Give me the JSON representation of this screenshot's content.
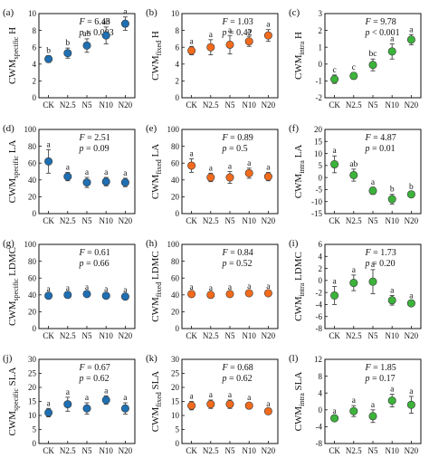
{
  "colors": {
    "blue": "#1f6fb2",
    "orange": "#f26b1d",
    "green": "#3cb33a",
    "axis": "#111111"
  },
  "chart_data": [
    {
      "type": "scatter",
      "panel": "(a)",
      "ylabel_main": "CWM",
      "ylabel_sub": "specific",
      "ylabel_trait": " H",
      "ylim": [
        0,
        10
      ],
      "yticks": [
        0,
        2,
        4,
        6,
        8,
        10
      ],
      "categories": [
        "CK",
        "N2.5",
        "N5",
        "N10",
        "N20"
      ],
      "values": [
        4.6,
        5.3,
        6.2,
        7.4,
        8.8
      ],
      "errors": [
        0.4,
        0.6,
        0.8,
        1.0,
        0.8
      ],
      "letters": [
        "b",
        "b",
        "ab",
        "ab",
        "a"
      ],
      "stat_f": "6.43",
      "stat_p": "0.003",
      "stat_p_op": "=",
      "color": "blue"
    },
    {
      "type": "scatter",
      "panel": "(b)",
      "ylabel_main": "CWM",
      "ylabel_sub": "fixed",
      "ylabel_trait": " H",
      "ylim": [
        0,
        10
      ],
      "yticks": [
        0,
        2,
        4,
        6,
        8,
        10
      ],
      "categories": [
        "CK",
        "N2.5",
        "N5",
        "N10",
        "N20"
      ],
      "values": [
        5.6,
        6.0,
        6.3,
        6.7,
        7.4
      ],
      "errors": [
        0.5,
        0.9,
        1.1,
        0.6,
        0.7
      ],
      "letters": [
        "a",
        "a",
        "a",
        "a",
        "a"
      ],
      "stat_f": "1.03",
      "stat_p": "0.42",
      "stat_p_op": "=",
      "color": "orange"
    },
    {
      "type": "scatter",
      "panel": "(c)",
      "ylabel_main": "CWM",
      "ylabel_sub": "intra",
      "ylabel_trait": " H",
      "ylim": [
        -2,
        3
      ],
      "yticks": [
        -2,
        -1,
        0,
        1,
        2,
        3
      ],
      "categories": [
        "CK",
        "N2.5",
        "N5",
        "N10",
        "N20"
      ],
      "values": [
        -0.9,
        -0.7,
        -0.05,
        0.75,
        1.45
      ],
      "errors": [
        0.25,
        0.2,
        0.35,
        0.45,
        0.3
      ],
      "letters": [
        "c",
        "c",
        "bc",
        "a",
        "a"
      ],
      "stat_f": "9.78",
      "stat_p": "0.001",
      "stat_p_op": "<",
      "color": "green"
    },
    {
      "type": "scatter",
      "panel": "(d)",
      "ylabel_main": "CWM",
      "ylabel_sub": "specific",
      "ylabel_trait": " LA",
      "ylim": [
        0,
        100
      ],
      "yticks": [
        0,
        20,
        40,
        60,
        80,
        100
      ],
      "categories": [
        "CK",
        "N2.5",
        "N5",
        "N10",
        "N20"
      ],
      "values": [
        62,
        44,
        37,
        38,
        37
      ],
      "errors": [
        14,
        5,
        6,
        5,
        5
      ],
      "letters": [
        "a",
        "a",
        "a",
        "a",
        "a"
      ],
      "stat_f": "2.51",
      "stat_p": "0.09",
      "stat_p_op": "=",
      "color": "blue"
    },
    {
      "type": "scatter",
      "panel": "(e)",
      "ylabel_main": "CWM",
      "ylabel_sub": "fixed",
      "ylabel_trait": " LA",
      "ylim": [
        0,
        100
      ],
      "yticks": [
        0,
        20,
        40,
        60,
        80,
        100
      ],
      "categories": [
        "CK",
        "N2.5",
        "N5",
        "N10",
        "N20"
      ],
      "values": [
        57,
        43,
        43,
        48,
        44
      ],
      "errors": [
        8,
        5,
        7,
        6,
        5
      ],
      "letters": [
        "a",
        "a",
        "a",
        "a",
        "a"
      ],
      "stat_f": "0.89",
      "stat_p": "0.5",
      "stat_p_op": "=",
      "color": "orange"
    },
    {
      "type": "scatter",
      "panel": "(f)",
      "ylabel_main": "CWM",
      "ylabel_sub": "intra",
      "ylabel_trait": " LA",
      "ylim": [
        -15,
        20
      ],
      "yticks": [
        -15,
        -10,
        -5,
        0,
        5,
        10,
        15,
        20
      ],
      "categories": [
        "CK",
        "N2.5",
        "N5",
        "N10",
        "N20"
      ],
      "values": [
        5.5,
        1.0,
        -5.5,
        -9.0,
        -7.0
      ],
      "errors": [
        3.5,
        2.5,
        1.5,
        2.0,
        1.0
      ],
      "letters": [
        "a",
        "ab",
        "a",
        "b",
        "b"
      ],
      "stat_f": "4.87",
      "stat_p": "0.01",
      "stat_p_op": "=",
      "color": "green"
    },
    {
      "type": "scatter",
      "panel": "(g)",
      "ylabel_main": "CWM",
      "ylabel_sub": "specific",
      "ylabel_trait": " LDMC",
      "ylim": [
        0,
        100
      ],
      "yticks": [
        0,
        20,
        40,
        60,
        80,
        100
      ],
      "categories": [
        "CK",
        "N2.5",
        "N5",
        "N10",
        "N20"
      ],
      "values": [
        39,
        40,
        41,
        39,
        38
      ],
      "errors": [
        2,
        2,
        2,
        2,
        2
      ],
      "letters": [
        "a",
        "a",
        "a",
        "a",
        "a"
      ],
      "stat_f": "0.61",
      "stat_p": "0.66",
      "stat_p_op": "=",
      "color": "blue"
    },
    {
      "type": "scatter",
      "panel": "(h)",
      "ylabel_main": "CWM",
      "ylabel_sub": "fixed",
      "ylabel_trait": " LDMC",
      "ylim": [
        0,
        100
      ],
      "yticks": [
        0,
        20,
        40,
        60,
        80,
        100
      ],
      "categories": [
        "CK",
        "N2.5",
        "N5",
        "N10",
        "N20"
      ],
      "values": [
        41,
        40,
        41,
        42,
        42
      ],
      "errors": [
        2,
        2,
        2,
        2,
        2
      ],
      "letters": [
        "a",
        "a",
        "a",
        "a",
        "a"
      ],
      "stat_f": "0.84",
      "stat_p": "0.52",
      "stat_p_op": "=",
      "color": "orange"
    },
    {
      "type": "scatter",
      "panel": "(i)",
      "ylabel_main": "CWM",
      "ylabel_sub": "intra",
      "ylabel_trait": " LDMC",
      "ylim": [
        -8,
        6
      ],
      "yticks": [
        -8,
        -6,
        -4,
        -2,
        0,
        2,
        4,
        6
      ],
      "categories": [
        "CK",
        "N2.5",
        "N5",
        "N10",
        "N20"
      ],
      "values": [
        -2.5,
        -0.4,
        -0.2,
        -3.3,
        -3.8
      ],
      "errors": [
        1.5,
        1.3,
        2.0,
        0.8,
        0.4
      ],
      "letters": [
        "a",
        "a",
        "a",
        "a",
        "a"
      ],
      "stat_f": "1.73",
      "stat_p": "0.20",
      "stat_p_op": "=",
      "color": "green"
    },
    {
      "type": "scatter",
      "panel": "(j)",
      "ylabel_main": "CWM",
      "ylabel_sub": "specific",
      "ylabel_trait": " SLA",
      "ylim": [
        0,
        30
      ],
      "yticks": [
        0,
        5,
        10,
        15,
        20,
        25,
        30
      ],
      "categories": [
        "CK",
        "N2.5",
        "N5",
        "N10",
        "N20"
      ],
      "values": [
        11,
        14,
        12.5,
        15.5,
        12.5
      ],
      "errors": [
        1.5,
        2.5,
        2.0,
        1.5,
        2.0
      ],
      "letters": [
        "a",
        "a",
        "a",
        "a",
        "a"
      ],
      "stat_f": "0.67",
      "stat_p": "0.62",
      "stat_p_op": "=",
      "color": "blue"
    },
    {
      "type": "scatter",
      "panel": "(k)",
      "ylabel_main": "CWM",
      "ylabel_sub": "fixed",
      "ylabel_trait": " SLA",
      "ylim": [
        0,
        30
      ],
      "yticks": [
        0,
        5,
        10,
        15,
        20,
        25,
        30
      ],
      "categories": [
        "CK",
        "N2.5",
        "N5",
        "N10",
        "N20"
      ],
      "values": [
        13.5,
        14,
        14,
        13.5,
        11.5
      ],
      "errors": [
        1.5,
        1.5,
        1.5,
        1.0,
        0.8
      ],
      "letters": [
        "a",
        "a",
        "a",
        "a",
        "a"
      ],
      "stat_f": "0.68",
      "stat_p": "0.62",
      "stat_p_op": "=",
      "color": "orange"
    },
    {
      "type": "scatter",
      "panel": "(l)",
      "ylabel_main": "CWM",
      "ylabel_sub": "intra",
      "ylabel_trait": " SLA",
      "ylim": [
        -8,
        12
      ],
      "yticks": [
        -8,
        -4,
        0,
        4,
        8,
        12
      ],
      "categories": [
        "CK",
        "N2.5",
        "N5",
        "N10",
        "N20"
      ],
      "values": [
        -2.0,
        -0.3,
        -1.5,
        2.2,
        1.2
      ],
      "errors": [
        0.4,
        1.3,
        1.5,
        1.5,
        2.0
      ],
      "letters": [
        "a",
        "a",
        "a",
        "a",
        "a"
      ],
      "stat_f": "1.85",
      "stat_p": "0.17",
      "stat_p_op": "=",
      "color": "green"
    }
  ]
}
